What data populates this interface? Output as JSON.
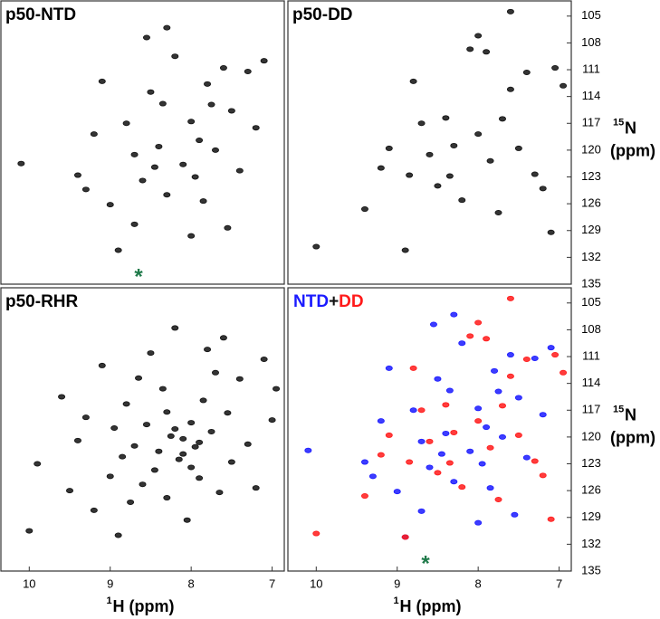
{
  "chart_data": [
    {
      "type": "scatter",
      "title": "p50-NTD",
      "xlim": [
        10.35,
        6.85
      ],
      "ylim": [
        103.3,
        135
      ],
      "series": [
        {
          "color": "#111111",
          "x": [
            10.1,
            9.4,
            9.2,
            9.0,
            8.9,
            8.8,
            8.7,
            8.6,
            8.5,
            8.4,
            8.3,
            8.2,
            8.1,
            8.0,
            7.95,
            7.9,
            7.8,
            7.7,
            7.6,
            7.5,
            7.4,
            7.3,
            7.2,
            7.1,
            8.55,
            8.3,
            8.0,
            8.7,
            9.1,
            8.35,
            7.85,
            7.55,
            9.3,
            8.45,
            7.75
          ],
          "y": [
            121.5,
            122.8,
            118.2,
            126.1,
            131.2,
            117.0,
            120.5,
            123.4,
            113.5,
            119.6,
            125.0,
            109.5,
            121.6,
            116.8,
            123.0,
            118.9,
            112.6,
            120.0,
            110.8,
            115.6,
            122.3,
            111.2,
            117.5,
            110.0,
            107.4,
            106.3,
            129.6,
            128.3,
            112.3,
            114.8,
            125.7,
            128.7,
            124.4,
            121.9,
            114.9
          ]
        }
      ],
      "annotation": {
        "text": "*",
        "x": 8.65,
        "y": 133.9,
        "color": "#1f7a4a"
      }
    },
    {
      "type": "scatter",
      "title": "p50-DD",
      "xlim": [
        10.35,
        6.85
      ],
      "ylim": [
        103.3,
        135
      ],
      "yticks": [
        105,
        108,
        111,
        114,
        117,
        120,
        123,
        126,
        129,
        132,
        135
      ],
      "ylabel": {
        "sup": "15",
        "main": "N",
        "unit": "(ppm)"
      },
      "series": [
        {
          "color": "#111111",
          "x": [
            10.0,
            9.4,
            9.2,
            9.1,
            8.9,
            8.85,
            8.7,
            8.6,
            8.5,
            8.4,
            8.3,
            8.2,
            8.1,
            8.0,
            7.9,
            7.85,
            7.7,
            7.6,
            7.5,
            7.4,
            7.3,
            7.2,
            7.1,
            7.05,
            6.95,
            7.6,
            8.0,
            8.8,
            8.35,
            7.75
          ],
          "y": [
            130.8,
            126.6,
            122.0,
            119.8,
            131.2,
            122.8,
            117.0,
            120.5,
            124.0,
            116.4,
            119.5,
            125.6,
            108.7,
            118.2,
            109.0,
            121.2,
            116.5,
            113.2,
            119.8,
            111.3,
            122.7,
            124.3,
            129.2,
            110.8,
            112.8,
            104.5,
            107.2,
            112.3,
            122.9,
            127.0
          ]
        }
      ]
    },
    {
      "type": "scatter",
      "title": "p50-RHR",
      "xlim": [
        10.35,
        6.85
      ],
      "ylim": [
        103.3,
        135
      ],
      "xticks": [
        10,
        9,
        8,
        7
      ],
      "xlabel": {
        "sup": "1",
        "main": "H (ppm)"
      },
      "series": [
        {
          "color": "#111111",
          "x": [
            10.0,
            9.9,
            9.6,
            9.5,
            9.4,
            9.3,
            9.2,
            9.1,
            9.0,
            8.95,
            8.9,
            8.85,
            8.8,
            8.75,
            8.7,
            8.65,
            8.6,
            8.55,
            8.5,
            8.45,
            8.4,
            8.35,
            8.3,
            8.25,
            8.2,
            8.15,
            8.1,
            8.05,
            8.0,
            7.95,
            7.9,
            7.85,
            7.8,
            7.75,
            7.7,
            7.65,
            7.6,
            7.55,
            7.5,
            7.4,
            7.3,
            7.2,
            7.1,
            7.0,
            6.95,
            8.1,
            8.2,
            8.0,
            7.9,
            8.3
          ],
          "y": [
            130.5,
            123.0,
            115.5,
            126.0,
            120.4,
            117.8,
            128.2,
            112.0,
            124.4,
            119.0,
            131.0,
            122.2,
            116.3,
            127.3,
            121.0,
            113.4,
            125.3,
            118.6,
            110.6,
            123.7,
            121.6,
            114.6,
            126.8,
            119.9,
            107.8,
            122.5,
            120.2,
            129.3,
            118.4,
            121.1,
            124.6,
            115.9,
            110.2,
            119.4,
            112.8,
            126.2,
            108.9,
            117.3,
            122.8,
            113.5,
            120.8,
            125.7,
            111.3,
            118.1,
            114.6,
            121.9,
            119.1,
            123.4,
            120.6,
            117.2
          ]
        }
      ]
    },
    {
      "type": "scatter",
      "xlim": [
        10.35,
        6.85
      ],
      "ylim": [
        103.3,
        135
      ],
      "xticks": [
        10,
        9,
        8,
        7
      ],
      "yticks": [
        105,
        108,
        111,
        114,
        117,
        120,
        123,
        126,
        129,
        132,
        135
      ],
      "xlabel": {
        "sup": "1",
        "main": "H (ppm)"
      },
      "ylabel": {
        "sup": "15",
        "main": "N",
        "unit": "(ppm)"
      },
      "legend_joiner": "+",
      "series": [
        {
          "name": "NTD",
          "color": "#1a1aff",
          "x": [
            10.1,
            9.4,
            9.2,
            9.0,
            8.9,
            8.8,
            8.7,
            8.6,
            8.5,
            8.4,
            8.3,
            8.2,
            8.1,
            8.0,
            7.95,
            7.9,
            7.8,
            7.7,
            7.6,
            7.5,
            7.4,
            7.3,
            7.2,
            7.1,
            8.55,
            8.3,
            8.0,
            8.7,
            9.1,
            8.35,
            7.85,
            7.55,
            9.3,
            8.45,
            7.75
          ],
          "y": [
            121.5,
            122.8,
            118.2,
            126.1,
            131.2,
            117.0,
            120.5,
            123.4,
            113.5,
            119.6,
            125.0,
            109.5,
            121.6,
            116.8,
            123.0,
            118.9,
            112.6,
            120.0,
            110.8,
            115.6,
            122.3,
            111.2,
            117.5,
            110.0,
            107.4,
            106.3,
            129.6,
            128.3,
            112.3,
            114.8,
            125.7,
            128.7,
            124.4,
            121.9,
            114.9
          ]
        },
        {
          "name": "DD",
          "color": "#ff1a1a",
          "x": [
            10.0,
            9.4,
            9.2,
            9.1,
            8.9,
            8.85,
            8.7,
            8.6,
            8.5,
            8.4,
            8.3,
            8.2,
            8.1,
            8.0,
            7.9,
            7.85,
            7.7,
            7.6,
            7.5,
            7.4,
            7.3,
            7.2,
            7.1,
            7.05,
            6.95,
            7.6,
            8.0,
            8.8,
            8.35,
            7.75
          ],
          "y": [
            130.8,
            126.6,
            122.0,
            119.8,
            131.2,
            122.8,
            117.0,
            120.5,
            124.0,
            116.4,
            119.5,
            125.6,
            108.7,
            118.2,
            109.0,
            121.2,
            116.5,
            113.2,
            119.8,
            111.3,
            122.7,
            124.3,
            129.2,
            110.8,
            112.8,
            104.5,
            107.2,
            112.3,
            122.9,
            127.0
          ]
        }
      ],
      "annotation": {
        "text": "*",
        "x": 8.65,
        "y": 133.9,
        "color": "#1f7a4a"
      }
    }
  ]
}
